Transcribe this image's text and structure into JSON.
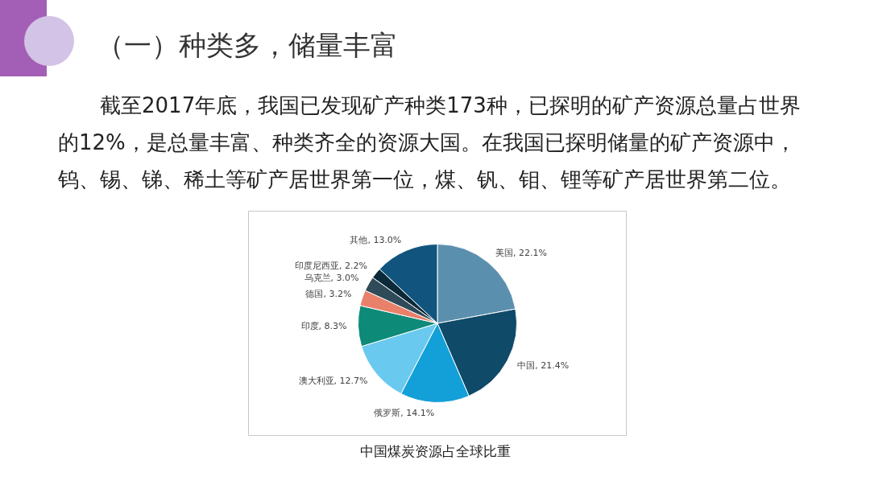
{
  "chart_data": {
    "type": "pie",
    "title": "（一）种类多，储量丰富",
    "subtitle": "截至2017年底，我国已发现矿产种类173种，已探明的矿产资源总量占世界的12%，是总量丰富、种类齐全的资源大国。在我国已探明储量的矿产资源中，钨、锡、锑、稀土等矿产居世界第一位，煤、钒、钼、锂等矿产居世界第二位。",
    "categories": [
      "美国",
      "中国",
      "俄罗斯",
      "澳大利亚",
      "印度",
      "德国",
      "乌克兰",
      "印度尼西亚",
      "其他"
    ],
    "values": [
      22.1,
      21.4,
      14.1,
      12.7,
      8.3,
      3.2,
      3.0,
      2.2,
      13.0
    ],
    "value_labels": [
      "22.1%",
      "21.4%",
      "14.1%",
      "12.7%",
      "8.3%",
      "3.2%",
      "3.0%",
      "2.2%",
      "13.0%"
    ],
    "colors": [
      "#5b8fae",
      "#0f4a68",
      "#13a0d8",
      "#69c9ee",
      "#0d8a78",
      "#e8806a",
      "#2f4a58",
      "#0b2a3a",
      "#11557e"
    ],
    "legend": false,
    "annotations": [
      "中国煤炭资源占全球比重"
    ]
  }
}
